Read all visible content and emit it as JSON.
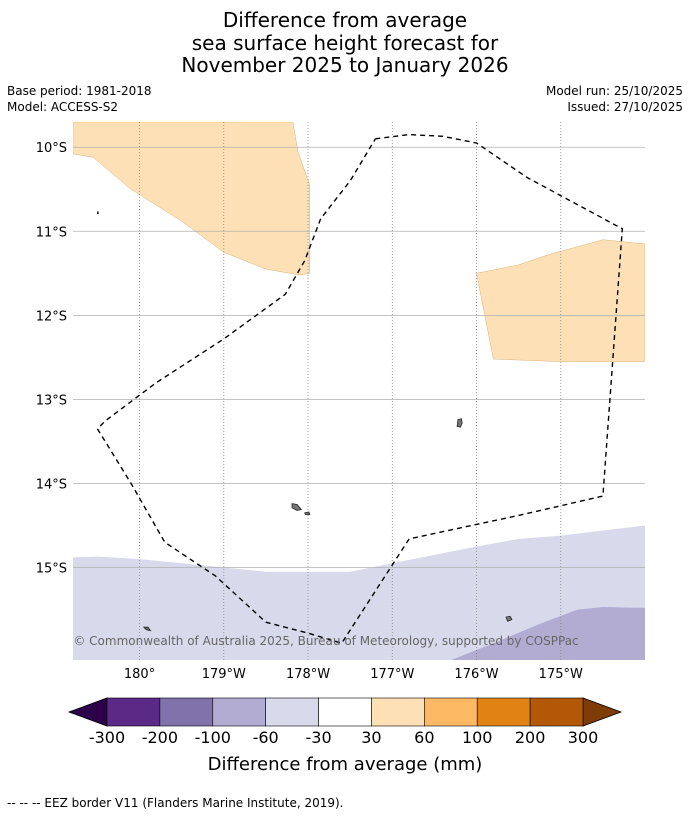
{
  "title": {
    "line1": "Difference from average",
    "line2": "sea surface height forecast for",
    "line3": "November 2025 to January 2026"
  },
  "meta": {
    "base_period": "Base period: 1981-2018",
    "model": "Model: ACCESS-S2",
    "model_run": "Model run: 25/10/2025",
    "issued": "Issued: 27/10/2025"
  },
  "copyright": "© Commonwealth of Australia 2025, Bureau of Meteorology, supported by COSPPac",
  "footer": "-- -- -- EEZ border V11 (Flanders Marine Institute, 2019).",
  "chart_data": {
    "type": "heatmap",
    "title": "Difference from average sea surface height forecast for November 2025 to January 2026",
    "xlabel": "",
    "ylabel": "",
    "xlim": [
      -180.79,
      -174.0
    ],
    "ylim": [
      -16.1,
      -9.7
    ],
    "x_ticks": [
      -180,
      -179,
      -178,
      -177,
      -176,
      -175
    ],
    "x_tick_labels": [
      "180°",
      "179°W",
      "178°W",
      "177°W",
      "176°W",
      "175°W"
    ],
    "y_ticks": [
      -10,
      -11,
      -12,
      -13,
      -14,
      -15
    ],
    "y_tick_labels": [
      "10°S",
      "11°S",
      "12°S",
      "13°S",
      "14°S",
      "15°S"
    ],
    "colorbar": {
      "label": "Difference from average (mm)",
      "bounds": [
        "-300",
        "-200",
        "-100",
        "-60",
        "-30",
        "30",
        "60",
        "100",
        "200",
        "300"
      ],
      "colors": [
        "#5b2a86",
        "#8073ac",
        "#b2abd2",
        "#d8daeb",
        "#ffffff",
        "#fee0b6",
        "#fdb863",
        "#e08214",
        "#b35806"
      ],
      "under_color": "#2d004b",
      "over_color": "#7f3b08"
    },
    "regions": [
      {
        "category": "30 to 60",
        "color": "#fee0b6",
        "polygon": [
          [
            -180.79,
            -9.7
          ],
          [
            -178.18,
            -9.7
          ],
          [
            -178.12,
            -10.05
          ],
          [
            -177.98,
            -10.45
          ],
          [
            -177.98,
            -11.5
          ],
          [
            -178.1,
            -11.52
          ],
          [
            -178.5,
            -11.45
          ],
          [
            -179.0,
            -11.25
          ],
          [
            -179.5,
            -10.88
          ],
          [
            -180.1,
            -10.5
          ],
          [
            -180.55,
            -10.12
          ],
          [
            -180.79,
            -10.08
          ]
        ]
      },
      {
        "category": "30 to 60",
        "color": "#fee0b6",
        "polygon": [
          [
            -176.0,
            -11.5
          ],
          [
            -175.5,
            -11.4
          ],
          [
            -175.15,
            -11.28
          ],
          [
            -174.5,
            -11.1
          ],
          [
            -174.0,
            -11.15
          ],
          [
            -174.0,
            -12.55
          ],
          [
            -175.0,
            -12.55
          ],
          [
            -175.8,
            -12.52
          ],
          [
            -176.0,
            -11.5
          ]
        ]
      },
      {
        "category": "-60 to -30",
        "color": "#d8daeb",
        "polygon": [
          [
            -180.79,
            -14.88
          ],
          [
            -180.5,
            -14.87
          ],
          [
            -180.0,
            -14.9
          ],
          [
            -179.5,
            -14.95
          ],
          [
            -179.0,
            -15.0
          ],
          [
            -178.5,
            -15.05
          ],
          [
            -178.0,
            -15.05
          ],
          [
            -177.5,
            -15.05
          ],
          [
            -177.0,
            -14.95
          ],
          [
            -176.5,
            -14.85
          ],
          [
            -176.0,
            -14.75
          ],
          [
            -175.5,
            -14.66
          ],
          [
            -175.0,
            -14.62
          ],
          [
            -174.5,
            -14.56
          ],
          [
            -174.0,
            -14.5
          ],
          [
            -174.0,
            -16.1
          ],
          [
            -180.79,
            -16.1
          ]
        ]
      },
      {
        "category": "-100 to -60",
        "color": "#b2abd2",
        "polygon": [
          [
            -176.3,
            -16.1
          ],
          [
            -175.8,
            -15.9
          ],
          [
            -175.2,
            -15.65
          ],
          [
            -174.8,
            -15.5
          ],
          [
            -174.5,
            -15.47
          ],
          [
            -174.0,
            -15.48
          ],
          [
            -174.0,
            -16.1
          ]
        ]
      }
    ],
    "eez_border": [
      [
        -177.2,
        -9.9
      ],
      [
        -176.8,
        -9.85
      ],
      [
        -176.4,
        -9.87
      ],
      [
        -176.0,
        -9.95
      ],
      [
        -175.4,
        -10.36
      ],
      [
        -174.27,
        -10.97
      ],
      [
        -174.5,
        -14.15
      ],
      [
        -175.5,
        -14.38
      ],
      [
        -176.8,
        -14.66
      ],
      [
        -177.6,
        -15.9
      ],
      [
        -178.0,
        -15.78
      ],
      [
        -178.5,
        -15.65
      ],
      [
        -179.1,
        -15.1
      ],
      [
        -179.7,
        -14.7
      ],
      [
        -180.1,
        -14.0
      ],
      [
        -180.5,
        -13.35
      ],
      [
        -180.4,
        -13.25
      ],
      [
        -179.8,
        -12.8
      ],
      [
        -179.0,
        -12.28
      ],
      [
        -178.27,
        -11.75
      ],
      [
        -178.04,
        -11.35
      ],
      [
        -177.85,
        -10.85
      ],
      [
        -177.5,
        -10.4
      ]
    ],
    "islands": [
      {
        "name": "island-1",
        "outline": [
          [
            -176.22,
            -13.24
          ],
          [
            -176.18,
            -13.23
          ],
          [
            -176.17,
            -13.28
          ],
          [
            -176.19,
            -13.33
          ],
          [
            -176.23,
            -13.32
          ],
          [
            -176.22,
            -13.24
          ]
        ]
      },
      {
        "name": "island-2",
        "outline": [
          [
            -178.19,
            -14.24
          ],
          [
            -178.13,
            -14.25
          ],
          [
            -178.08,
            -14.31
          ],
          [
            -178.13,
            -14.32
          ],
          [
            -178.19,
            -14.29
          ],
          [
            -178.19,
            -14.24
          ]
        ]
      },
      {
        "name": "island-3",
        "outline": [
          [
            -178.04,
            -14.35
          ],
          [
            -177.99,
            -14.34
          ],
          [
            -177.98,
            -14.37
          ],
          [
            -178.03,
            -14.37
          ],
          [
            -178.04,
            -14.35
          ]
        ]
      },
      {
        "name": "island-4",
        "outline": [
          [
            -175.65,
            -15.59
          ],
          [
            -175.6,
            -15.58
          ],
          [
            -175.58,
            -15.62
          ],
          [
            -175.63,
            -15.64
          ],
          [
            -175.65,
            -15.59
          ]
        ]
      },
      {
        "name": "island-5",
        "outline": [
          [
            -180.5,
            -10.77
          ],
          [
            -180.49,
            -10.77
          ],
          [
            -180.49,
            -10.79
          ],
          [
            -180.5,
            -10.79
          ],
          [
            -180.5,
            -10.77
          ]
        ]
      },
      {
        "name": "island-6",
        "outline": [
          [
            -179.95,
            -15.71
          ],
          [
            -179.9,
            -15.71
          ],
          [
            -179.87,
            -15.75
          ],
          [
            -179.92,
            -15.74
          ],
          [
            -179.95,
            -15.71
          ]
        ]
      }
    ]
  }
}
